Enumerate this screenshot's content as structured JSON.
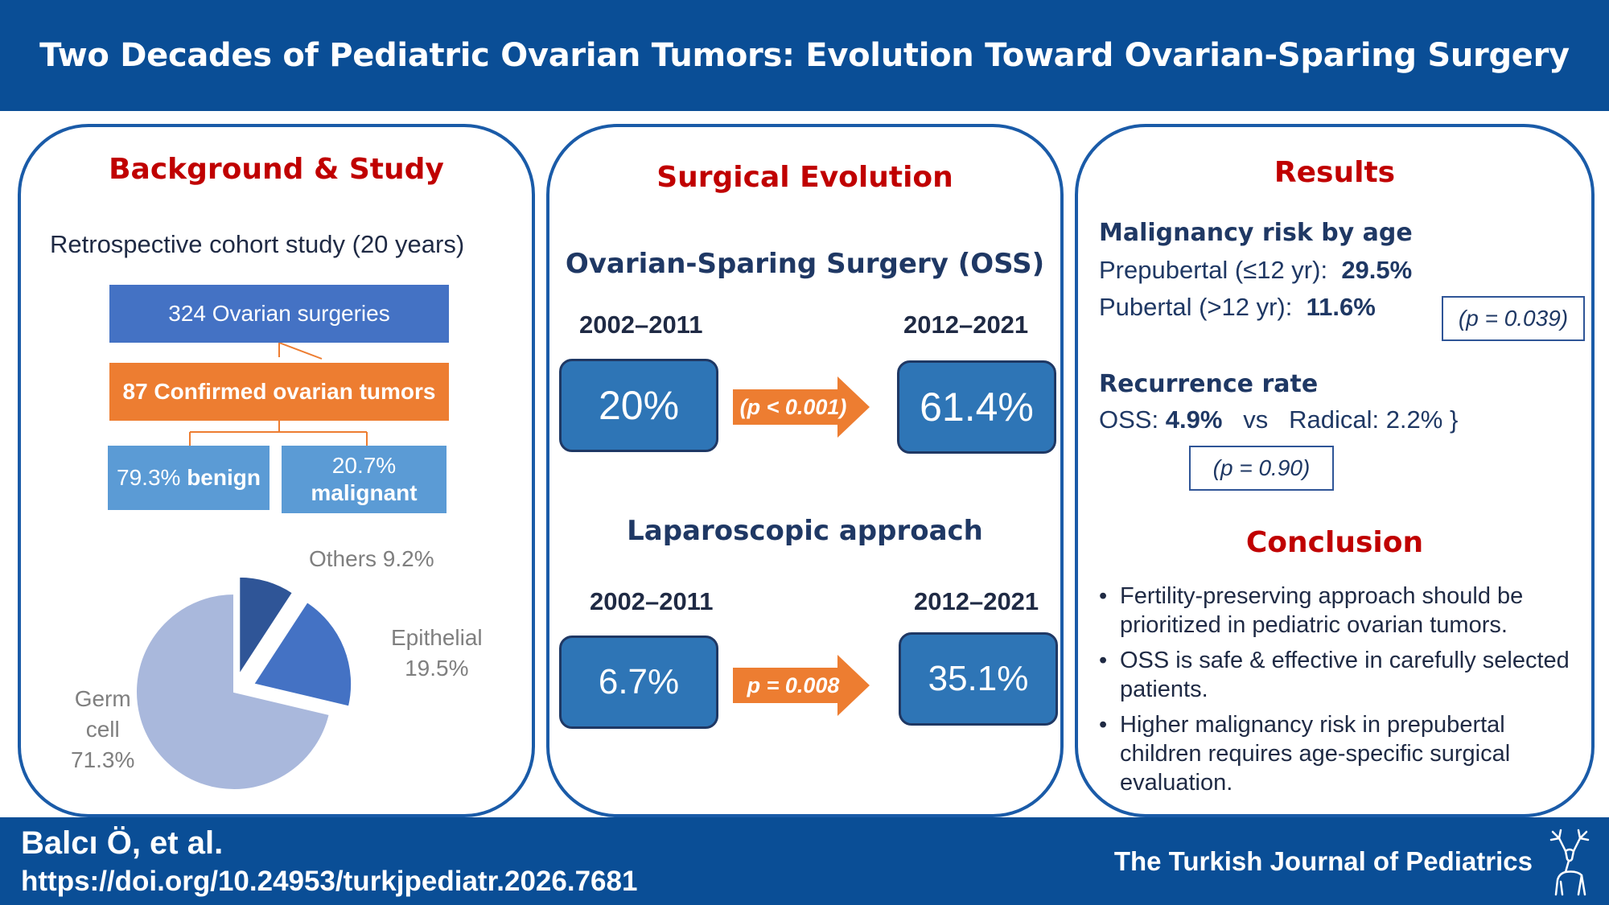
{
  "header": {
    "title": "Two Decades of Pediatric Ovarian Tumors: Evolution Toward Ovarian-Sparing Surgery"
  },
  "background": {
    "title": "Background & Study",
    "study_line": "Retrospective cohort study (20 years)",
    "flow": {
      "surgeries": "324 Ovarian surgeries",
      "tumors": "87 Confirmed ovarian tumors",
      "benign_pct": "79.3% ",
      "benign_word": "benign",
      "malignant_pct": "20.7%",
      "malignant_word": "malignant"
    },
    "pie": {
      "labels": {
        "others": "Others 9.2%",
        "epithelial_1": "Epithelial",
        "epithelial_2": "19.5%",
        "germ_1": "Germ",
        "germ_2": "cell",
        "germ_3": "71.3%"
      }
    }
  },
  "chart_data": {
    "type": "pie",
    "categories": [
      "Germ cell",
      "Epithelial",
      "Others"
    ],
    "values": [
      71.3,
      19.5,
      9.2
    ],
    "colors": [
      "#a9b8dc",
      "#4472c4",
      "#2f5597"
    ]
  },
  "surgical": {
    "title": "Surgical Evolution",
    "oss": {
      "title": "Ovarian-Sparing Surgery (OSS)",
      "period_a": "2002–2011",
      "period_b": "2012–2021",
      "value_a": "20%",
      "value_b": "61.4%",
      "p_value": "(p < 0.001)"
    },
    "lap": {
      "title": "Laparoscopic approach",
      "period_a": "2002–2011",
      "period_b": "2012–2021",
      "value_a": "6.7%",
      "value_b": "35.1%",
      "p_value": "p = 0.008"
    }
  },
  "results": {
    "title": "Results",
    "malignancy": {
      "heading": "Malignancy risk by age",
      "prepubertal_label": "Prepubertal (≤12 yr):",
      "prepubertal_value": "29.5%",
      "pubertal_label": "Pubertal (>12 yr):",
      "pubertal_value": "11.6%",
      "p_value": "(p = 0.039)"
    },
    "recurrence": {
      "heading": "Recurrence rate",
      "oss_label": "OSS:",
      "oss_value": "4.9%",
      "vs": "vs",
      "radical": "Radical: 2.2%",
      "p_value": "(p = 0.90)"
    }
  },
  "conclusion": {
    "title": "Conclusion",
    "bullets": [
      "Fertility-preserving approach should be prioritized in pediatric ovarian tumors.",
      "OSS is safe & effective in carefully selected patients.",
      "Higher malignancy risk in prepubertal children requires age-specific surgical evaluation."
    ]
  },
  "footer": {
    "authors": "Balcı Ö, et al.",
    "doi": "https://doi.org/10.24953/turkjpediatr.2026.7681",
    "journal": "The Turkish Journal of Pediatrics",
    "logo_icon": "deer-logo-icon"
  }
}
